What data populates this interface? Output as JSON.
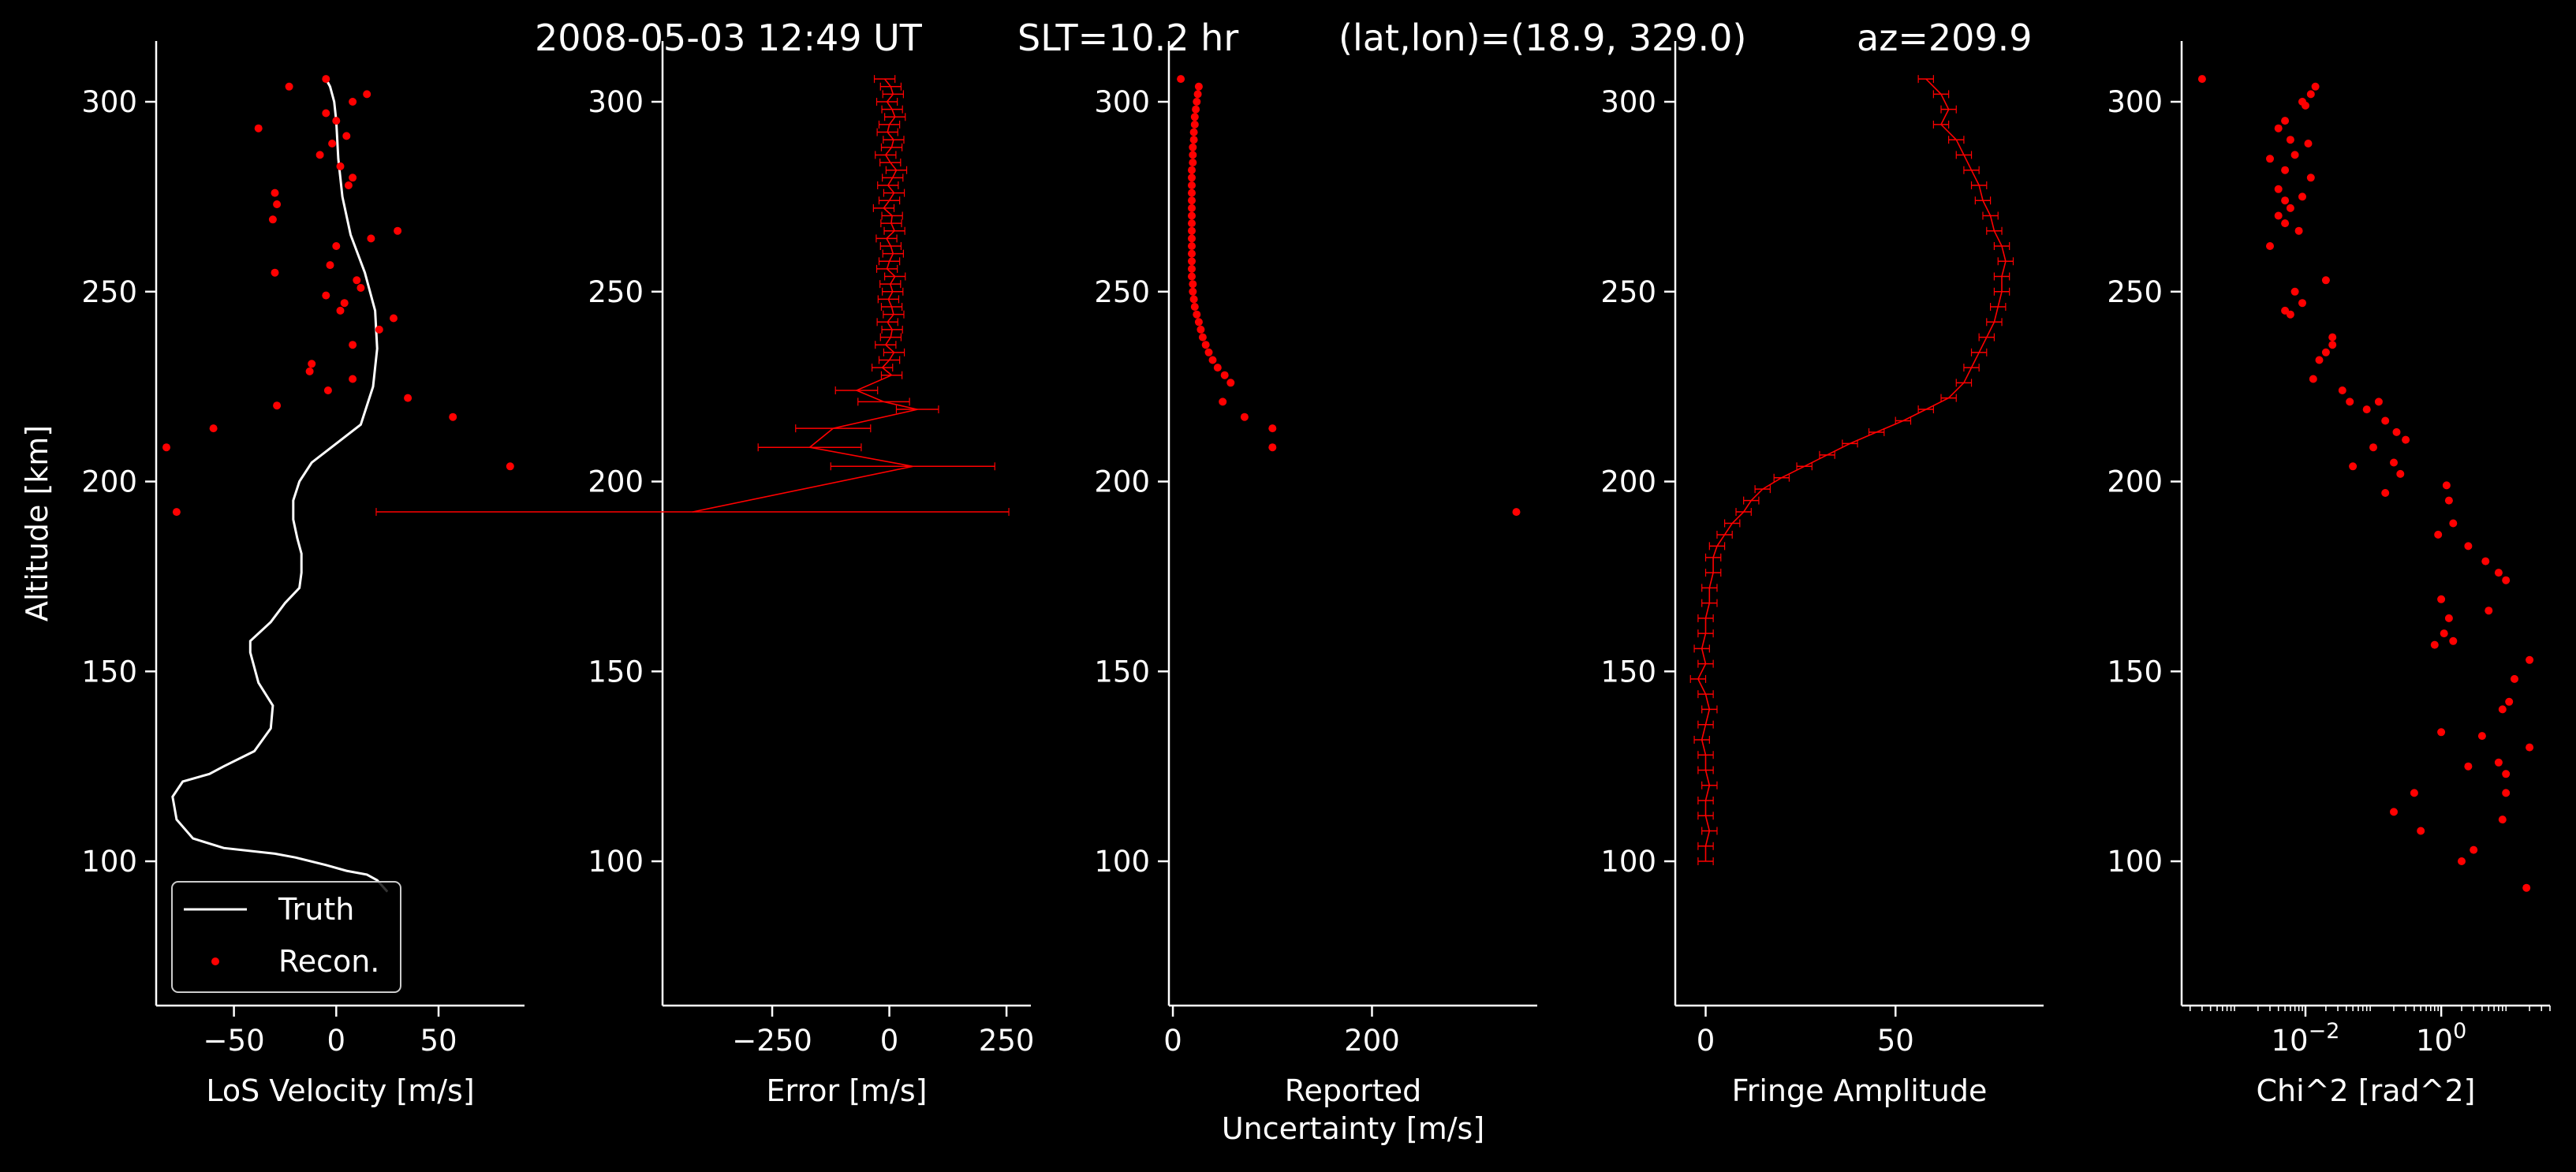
{
  "suptitle": {
    "date": "2008-05-03 12:49 UT",
    "slt": "SLT=10.2 hr",
    "latlon": "(lat,lon)=(18.9, 329.0)",
    "az": "az=209.9"
  },
  "colors": {
    "background": "#000000",
    "foreground": "#ffffff",
    "truth": "#ffffff",
    "recon": "#ff0000"
  },
  "chart_data": [
    {
      "type": "line",
      "id": "los-velocity",
      "xlabel": "LoS Velocity [m/s]",
      "ylabel": "Altitude [km]",
      "xlim": [
        -88,
        92
      ],
      "ylim": [
        62,
        316
      ],
      "xticks": [
        -50,
        0,
        50
      ],
      "xticklabels": [
        "−50",
        "0",
        "50"
      ],
      "yticks": [
        100,
        150,
        200,
        250,
        300
      ],
      "legend": {
        "placement": "lower-left",
        "entries": [
          "Truth",
          "Recon."
        ]
      },
      "series": [
        {
          "name": "Truth",
          "style": "line",
          "x": [
            25,
            20,
            15,
            5,
            -5,
            -20,
            -30,
            -55,
            -70,
            -78,
            -80,
            -75,
            -62,
            -55,
            -40,
            -32,
            -31,
            -38,
            -42,
            -42,
            -32,
            -25,
            -18,
            -17,
            -17,
            -19,
            -21,
            -21,
            -18,
            -12,
            0,
            12,
            18,
            20,
            19,
            14,
            7,
            3,
            1,
            0,
            -1,
            -2,
            -3,
            -4,
            -5
          ],
          "y": [
            92,
            95,
            96.5,
            97.5,
            99,
            101,
            102,
            103.5,
            106,
            111,
            117,
            121,
            123,
            125,
            129,
            135,
            141,
            147,
            155,
            158,
            163,
            168,
            172,
            176,
            181,
            185,
            190,
            195,
            200,
            205,
            210,
            215,
            225,
            235,
            245,
            255,
            265,
            275,
            285,
            295,
            300,
            302,
            304,
            305,
            306
          ]
        },
        {
          "name": "Recon.",
          "style": "points",
          "x": [
            -5,
            15,
            -23,
            8,
            0,
            -38,
            -5,
            -2,
            -8,
            5,
            8,
            6,
            2,
            -30,
            -29,
            30,
            -31,
            17,
            0,
            -3,
            10,
            12,
            4,
            -30,
            28,
            2,
            21,
            8,
            -12,
            -13,
            -4,
            8,
            -5,
            35,
            -29,
            57,
            -60,
            -83,
            85,
            -78
          ],
          "y": [
            306,
            302,
            304,
            300,
            295,
            293,
            297,
            289,
            286,
            291,
            280,
            278,
            283,
            276,
            273,
            266,
            269,
            264,
            262,
            257,
            253,
            251,
            247,
            255,
            243,
            245,
            240,
            236,
            231,
            229,
            224,
            227,
            249,
            222,
            220,
            217,
            214,
            209,
            204,
            192
          ]
        }
      ]
    },
    {
      "type": "line",
      "id": "error",
      "xlabel": "Error [m/s]",
      "xlim": [
        -484,
        302
      ],
      "ylim": [
        62,
        316
      ],
      "xticks": [
        -250,
        0,
        250
      ],
      "xticklabels": [
        "−250",
        "0",
        "250"
      ],
      "yticks": [
        100,
        150,
        200,
        250,
        300
      ],
      "series": [
        {
          "name": "",
          "style": "errorbar",
          "x": [
            -10,
            3,
            8,
            -5,
            6,
            12,
            0,
            -4,
            9,
            5,
            -8,
            2,
            15,
            7,
            -3,
            10,
            0,
            -12,
            6,
            4,
            11,
            -6,
            3,
            8,
            0,
            -5,
            12,
            2,
            7,
            -2,
            5,
            9,
            -4,
            6,
            3,
            -8,
            10,
            0,
            -15,
            5,
            -70,
            -12,
            60,
            -120,
            -170,
            50,
            -420
          ],
          "y": [
            306,
            304,
            302,
            300,
            298,
            296,
            294,
            292,
            290,
            288,
            286,
            284,
            282,
            280,
            278,
            276,
            274,
            272,
            270,
            268,
            266,
            264,
            262,
            260,
            258,
            256,
            254,
            252,
            250,
            248,
            246,
            244,
            242,
            240,
            238,
            236,
            234,
            232,
            230,
            228,
            224,
            221,
            219,
            214,
            209,
            204,
            192
          ],
          "xerr": [
            22,
            22,
            22,
            22,
            22,
            22,
            22,
            22,
            22,
            22,
            22,
            22,
            22,
            22,
            22,
            22,
            22,
            22,
            22,
            22,
            22,
            22,
            22,
            22,
            22,
            22,
            22,
            22,
            22,
            22,
            22,
            22,
            22,
            22,
            22,
            22,
            22,
            22,
            22,
            22,
            45,
            55,
            45,
            80,
            110,
            175,
            675
          ]
        }
      ]
    },
    {
      "type": "scatter",
      "id": "reported-uncertainty",
      "xlabel": "Reported\nUncertainty [m/s]",
      "xlim": [
        -4,
        366
      ],
      "ylim": [
        62,
        316
      ],
      "xticks": [
        0,
        200
      ],
      "xticklabels": [
        "0",
        "200"
      ],
      "yticks": [
        100,
        150,
        200,
        250,
        300
      ],
      "series": [
        {
          "name": "",
          "style": "points",
          "x": [
            8,
            26,
            25,
            24,
            23,
            22,
            22,
            21,
            21,
            20,
            20,
            20,
            19,
            19,
            19,
            19,
            19,
            19,
            19,
            19,
            19,
            19,
            19,
            19,
            19,
            19,
            19,
            20,
            20,
            21,
            22,
            24,
            26,
            28,
            30,
            33,
            36,
            40,
            45,
            52,
            58,
            50,
            72,
            100,
            100,
            345
          ],
          "y": [
            306,
            304,
            302,
            300,
            298,
            296,
            294,
            292,
            290,
            288,
            286,
            284,
            282,
            280,
            278,
            276,
            274,
            272,
            270,
            268,
            266,
            264,
            262,
            260,
            258,
            256,
            254,
            252,
            250,
            248,
            246,
            244,
            242,
            240,
            238,
            236,
            234,
            232,
            230,
            228,
            226,
            221,
            217,
            214,
            209,
            192
          ]
        }
      ]
    },
    {
      "type": "line",
      "id": "fringe-amplitude",
      "xlabel": "Fringe Amplitude",
      "xlim": [
        -8,
        89
      ],
      "ylim": [
        62,
        316
      ],
      "xticks": [
        0,
        50
      ],
      "xticklabels": [
        "0",
        "50"
      ],
      "yticks": [
        100,
        150,
        200,
        250,
        300
      ],
      "series": [
        {
          "name": "",
          "style": "errorbar",
          "x": [
            58,
            62,
            64,
            62,
            66,
            68,
            70,
            72,
            73,
            75,
            76,
            78,
            79,
            78,
            78,
            77,
            76,
            74,
            72,
            70,
            68,
            64,
            58,
            52,
            45,
            38,
            32,
            26,
            20,
            15,
            12,
            10,
            7,
            5,
            3,
            2,
            2,
            1,
            1,
            0,
            0,
            -1,
            0,
            -2,
            0,
            1,
            0,
            -1,
            0,
            0,
            1,
            0,
            0,
            1,
            0,
            0
          ],
          "y": [
            306,
            302,
            298,
            294,
            290,
            286,
            282,
            278,
            274,
            270,
            266,
            262,
            258,
            254,
            250,
            246,
            242,
            238,
            234,
            230,
            226,
            222,
            219,
            216,
            213,
            210,
            207,
            204,
            201,
            198,
            195,
            192,
            189,
            186,
            183,
            180,
            176,
            172,
            168,
            164,
            160,
            156,
            152,
            148,
            144,
            140,
            136,
            132,
            128,
            124,
            120,
            116,
            112,
            108,
            104,
            100
          ],
          "xerr": [
            2,
            2,
            2,
            2,
            2,
            2,
            2,
            2,
            2,
            2,
            2,
            2,
            2,
            2,
            2,
            2,
            2,
            2,
            2,
            2,
            2,
            2,
            2,
            2,
            2,
            2,
            2,
            2,
            2,
            2,
            2,
            2,
            2,
            2,
            2,
            2,
            2,
            2,
            2,
            2,
            2,
            2,
            2,
            2,
            2,
            2,
            2,
            2,
            2,
            2,
            2,
            2,
            2,
            2,
            2,
            2
          ]
        }
      ]
    },
    {
      "type": "scatter",
      "id": "chi2",
      "xlabel": "Chi^2 [rad^2]",
      "xscale": "log",
      "xlim": [
        0.00015,
        40
      ],
      "ylim": [
        62,
        316
      ],
      "xticks": [
        0.01,
        1
      ],
      "xticklabels": [
        "10",
        "10"
      ],
      "xtickexponents": [
        "−2",
        "0"
      ],
      "yticks": [
        100,
        150,
        200,
        250,
        300
      ],
      "series": [
        {
          "name": "",
          "style": "points",
          "x": [
            0.0003,
            0.014,
            0.012,
            0.009,
            0.01,
            0.005,
            0.004,
            0.006,
            0.003,
            0.011,
            0.007,
            0.005,
            0.012,
            0.004,
            0.005,
            0.009,
            0.006,
            0.004,
            0.005,
            0.008,
            0.003,
            0.02,
            0.007,
            0.009,
            0.006,
            0.005,
            0.025,
            0.025,
            0.02,
            0.016,
            0.013,
            0.035,
            0.045,
            0.12,
            0.15,
            0.08,
            0.22,
            0.3,
            0.1,
            0.2,
            0.25,
            0.05,
            1.2,
            0.15,
            1.3,
            1.5,
            0.9,
            2.5,
            7,
            9,
            4.5,
            1,
            1.3,
            1.1,
            20,
            12,
            1.5,
            5,
            0.8,
            8,
            10,
            4,
            7,
            1,
            20,
            2.5,
            9,
            0.4,
            9,
            0.5,
            0.2,
            2,
            8,
            3,
            18
          ],
          "y": [
            306,
            304,
            302,
            300,
            299,
            295,
            293,
            290,
            285,
            289,
            286,
            282,
            280,
            277,
            274,
            275,
            272,
            270,
            268,
            266,
            262,
            253,
            250,
            247,
            244,
            245,
            238,
            236,
            234,
            232,
            227,
            224,
            221,
            221,
            216,
            219,
            213,
            211,
            209,
            205,
            202,
            204,
            199,
            197,
            195,
            189,
            186,
            183,
            176,
            174,
            179,
            169,
            164,
            160,
            153,
            148,
            158,
            166,
            157,
            140,
            142,
            133,
            126,
            134,
            130,
            125,
            123,
            118,
            118,
            108,
            113,
            100,
            111,
            103,
            93
          ]
        }
      ]
    }
  ]
}
